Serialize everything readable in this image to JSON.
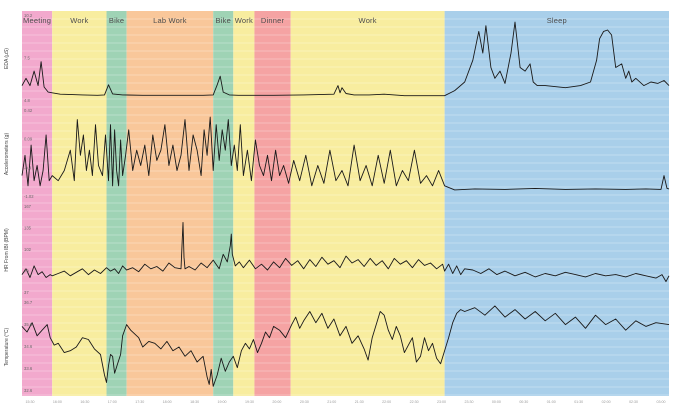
{
  "chart_data": {
    "type": "line",
    "grid": true,
    "periods": [
      {
        "label": "Meeting",
        "start": 0,
        "end": 30,
        "color": "#f2a9cd"
      },
      {
        "label": "Work",
        "start": 30,
        "end": 84,
        "color": "#f8ed9f"
      },
      {
        "label": "Bike",
        "start": 84,
        "end": 104,
        "color": "#9fd3b5"
      },
      {
        "label": "Lab Work",
        "start": 104,
        "end": 190,
        "color": "#f9c79a"
      },
      {
        "label": "Bike",
        "start": 190,
        "end": 210,
        "color": "#9fd3b5"
      },
      {
        "label": "Work",
        "start": 210,
        "end": 231,
        "color": "#f8ed9f"
      },
      {
        "label": "Dinner",
        "start": 231,
        "end": 267,
        "color": "#f5a3a3"
      },
      {
        "label": "Work",
        "start": 267,
        "end": 420,
        "color": "#f8ed9f"
      },
      {
        "label": "Sleep",
        "start": 420,
        "end": 643,
        "color": "#a9cfea"
      }
    ],
    "x_range": [
      0,
      643
    ],
    "panels": [
      {
        "ylabel": "EDA (μS)",
        "yticks": [
          "10.2",
          "7.5",
          "4.8"
        ],
        "ylim": [
          -0.5,
          11
        ],
        "x": [
          0,
          4,
          8,
          12,
          16,
          19,
          22,
          26,
          30,
          38,
          50,
          60,
          75,
          82,
          86,
          90,
          100,
          120,
          150,
          180,
          190,
          194,
          197,
          200,
          206,
          215,
          250,
          280,
          310,
          314,
          316,
          318,
          322,
          330,
          345,
          360,
          380,
          400,
          420,
          430,
          440,
          448,
          454,
          458,
          461,
          466,
          470,
          475,
          480,
          486,
          490,
          495,
          500,
          505,
          508,
          512,
          520,
          540,
          555,
          565,
          571,
          574,
          578,
          582,
          586,
          590,
          596,
          600,
          603,
          606,
          610,
          618,
          625,
          632,
          638,
          643
        ],
        "y": [
          1.5,
          2.5,
          1.5,
          3.5,
          1.5,
          4.8,
          1.3,
          0.6,
          0.5,
          0.3,
          0.25,
          0.2,
          0.15,
          0.2,
          1.6,
          0.35,
          0.2,
          0.15,
          0.15,
          0.15,
          0.2,
          1.6,
          2.8,
          0.6,
          0.2,
          0.15,
          0.15,
          0.2,
          0.3,
          1.5,
          0.5,
          1.2,
          0.4,
          0.2,
          0.2,
          0.3,
          0.1,
          0.1,
          0.1,
          0.8,
          2,
          5,
          9,
          6,
          9.8,
          4,
          2.5,
          3.5,
          1.8,
          6,
          10.3,
          4,
          3.5,
          4.5,
          2,
          1.5,
          1.5,
          1.2,
          1.5,
          2,
          5,
          8,
          9,
          9.2,
          8.5,
          4,
          4.5,
          2.5,
          3.5,
          2,
          2.5,
          1.5,
          2,
          1.8,
          2.2,
          1.5
        ]
      },
      {
        "ylabel": "Accelerometers (g)",
        "yticks": [
          "0.42",
          "0.09",
          "-0.4",
          "-1.02"
        ],
        "ylim": [
          -1.1,
          0.55
        ],
        "x": [
          0,
          3,
          6,
          9,
          12,
          15,
          18,
          21,
          24,
          27,
          30,
          36,
          42,
          48,
          52,
          55,
          58,
          61,
          64,
          67,
          70,
          73,
          76,
          80,
          83,
          86,
          88,
          90,
          92,
          94,
          96,
          98,
          100,
          103,
          106,
          110,
          114,
          118,
          122,
          126,
          130,
          134,
          138,
          142,
          146,
          150,
          154,
          158,
          162,
          166,
          170,
          174,
          178,
          181,
          184,
          187,
          190,
          193,
          196,
          199,
          202,
          205,
          208,
          211,
          214,
          217,
          220,
          224,
          228,
          232,
          236,
          240,
          244,
          248,
          252,
          256,
          260,
          265,
          270,
          276,
          282,
          288,
          294,
          300,
          306,
          312,
          318,
          324,
          330,
          336,
          342,
          348,
          354,
          360,
          366,
          372,
          378,
          384,
          390,
          396,
          402,
          408,
          414,
          420,
          430,
          450,
          480,
          510,
          540,
          570,
          600,
          620,
          635,
          638,
          641,
          643
        ],
        "y": [
          -0.7,
          -0.3,
          -0.9,
          -0.1,
          -0.8,
          -0.5,
          -0.9,
          -0.6,
          0.1,
          -0.8,
          -0.7,
          -0.8,
          -0.6,
          -0.2,
          -0.8,
          0.4,
          -0.3,
          0.1,
          -0.6,
          -0.2,
          -0.7,
          0.3,
          -0.5,
          -0.7,
          0.1,
          -0.8,
          0.3,
          -0.9,
          0.2,
          -0.6,
          -0.9,
          0,
          -0.7,
          -0.3,
          0.2,
          -0.6,
          -0.2,
          -0.5,
          -0.1,
          -0.7,
          0.1,
          -0.4,
          -0.2,
          0.3,
          -0.5,
          -0.1,
          -0.6,
          -0.3,
          0.4,
          -0.6,
          0.1,
          -0.2,
          -0.7,
          0.2,
          -0.3,
          0.45,
          -0.6,
          0.3,
          -0.4,
          0.2,
          -0.2,
          0.4,
          -0.5,
          -0.1,
          -0.6,
          0.3,
          -0.7,
          -0.2,
          -0.8,
          0,
          -0.5,
          -0.7,
          -0.3,
          -0.8,
          -0.2,
          -0.7,
          -0.5,
          -0.85,
          -0.4,
          -0.8,
          -0.3,
          -0.9,
          -0.5,
          -0.85,
          -0.2,
          -0.8,
          -0.6,
          -0.9,
          -0.1,
          -0.8,
          -0.5,
          -0.9,
          -0.3,
          -0.85,
          -0.2,
          -0.9,
          -0.6,
          -0.8,
          -0.2,
          -0.85,
          -0.7,
          -0.9,
          -0.6,
          -0.9,
          -0.98,
          -0.96,
          -0.97,
          -0.95,
          -0.97,
          -0.96,
          -0.97,
          -0.96,
          -0.97,
          -0.7,
          -0.95,
          -0.96
        ]
      },
      {
        "ylabel": "HR From IBI (BPM)",
        "yticks": [
          "167",
          "135",
          "102",
          "70",
          "37"
        ],
        "ylim": [
          30,
          175
        ],
        "x": [
          0,
          4,
          8,
          12,
          16,
          20,
          24,
          28,
          30,
          36,
          42,
          48,
          54,
          60,
          66,
          72,
          78,
          84,
          88,
          92,
          96,
          100,
          104,
          110,
          116,
          122,
          128,
          134,
          140,
          146,
          152,
          158,
          160,
          161,
          162,
          166,
          172,
          178,
          184,
          190,
          196,
          200,
          204,
          207,
          208,
          209,
          212,
          216,
          220,
          226,
          232,
          238,
          244,
          250,
          256,
          262,
          268,
          274,
          280,
          286,
          292,
          298,
          304,
          310,
          316,
          322,
          328,
          334,
          340,
          346,
          352,
          358,
          364,
          370,
          376,
          382,
          388,
          394,
          400,
          406,
          412,
          418,
          420,
          424,
          428,
          432,
          436,
          440,
          448,
          456,
          464,
          472,
          480,
          490,
          500,
          510,
          520,
          530,
          540,
          550,
          560,
          570,
          580,
          590,
          600,
          610,
          620,
          630,
          636,
          640,
          643
        ],
        "y": [
          60,
          70,
          55,
          75,
          60,
          65,
          55,
          60,
          58,
          62,
          66,
          58,
          64,
          70,
          60,
          68,
          62,
          72,
          66,
          70,
          62,
          75,
          68,
          72,
          65,
          78,
          70,
          74,
          66,
          80,
          72,
          70,
          150,
          90,
          70,
          74,
          68,
          80,
          72,
          85,
          70,
          95,
          82,
          110,
          130,
          95,
          75,
          82,
          72,
          85,
          70,
          78,
          68,
          82,
          72,
          88,
          76,
          84,
          70,
          86,
          74,
          90,
          78,
          84,
          72,
          92,
          80,
          86,
          74,
          88,
          76,
          84,
          70,
          88,
          78,
          84,
          72,
          86,
          76,
          80,
          70,
          78,
          66,
          78,
          62,
          75,
          60,
          70,
          68,
          62,
          70,
          60,
          66,
          58,
          64,
          56,
          62,
          58,
          64,
          60,
          56,
          62,
          58,
          60,
          56,
          62,
          58,
          54,
          60,
          48,
          58
        ]
      },
      {
        "ylabel": "Temperature (°C)",
        "yticks": [
          "36.7",
          "35.6",
          "34.6",
          "33.6",
          "32.6"
        ],
        "ylim": [
          32.4,
          37.0
        ],
        "x": [
          0,
          5,
          10,
          15,
          20,
          25,
          28,
          32,
          36,
          42,
          48,
          54,
          60,
          66,
          72,
          78,
          82,
          84,
          86,
          88,
          90,
          92,
          95,
          98,
          100,
          104,
          108,
          112,
          116,
          120,
          126,
          132,
          138,
          144,
          150,
          156,
          162,
          168,
          174,
          180,
          184,
          186,
          188,
          190,
          194,
          198,
          202,
          206,
          210,
          214,
          218,
          222,
          226,
          230,
          234,
          238,
          242,
          246,
          250,
          256,
          262,
          268,
          272,
          276,
          280,
          286,
          292,
          298,
          304,
          310,
          316,
          322,
          328,
          334,
          340,
          344,
          348,
          352,
          356,
          360,
          364,
          368,
          372,
          376,
          380,
          384,
          388,
          392,
          396,
          400,
          404,
          408,
          412,
          416,
          420,
          424,
          428,
          432,
          436,
          440,
          450,
          460,
          470,
          480,
          490,
          500,
          510,
          520,
          530,
          540,
          550,
          560,
          570,
          580,
          590,
          600,
          610,
          620,
          630,
          643
        ],
        "y": [
          35.8,
          35.5,
          36.0,
          35.3,
          35.6,
          35.9,
          35.2,
          34.8,
          34.9,
          34.4,
          34.5,
          34.7,
          35.2,
          35.1,
          34.6,
          34.3,
          33.2,
          32.8,
          33.7,
          34.3,
          34.2,
          33.3,
          33.8,
          34.3,
          35.3,
          35.9,
          35.6,
          35.4,
          35.2,
          34.7,
          35.0,
          34.9,
          34.6,
          35.0,
          34.5,
          34.7,
          34.2,
          34.5,
          33.9,
          34.2,
          33.1,
          32.7,
          33.5,
          32.6,
          33.2,
          34.1,
          33.4,
          33.9,
          34.2,
          33.6,
          34.5,
          34.9,
          34.6,
          35.1,
          34.4,
          34.9,
          35.5,
          35.2,
          35.8,
          35.6,
          35.2,
          35.9,
          36.3,
          35.7,
          36.1,
          36.6,
          36.0,
          36.5,
          35.7,
          36.2,
          35.3,
          35.8,
          34.9,
          35.3,
          34.6,
          34.0,
          35.2,
          35.9,
          36.6,
          36.4,
          35.6,
          35.1,
          35.8,
          35.3,
          34.4,
          34.8,
          35.2,
          33.9,
          34.2,
          35.2,
          34.5,
          34.9,
          34.1,
          33.8,
          34.5,
          35.2,
          36.0,
          36.5,
          36.7,
          36.6,
          36.8,
          36.4,
          36.9,
          36.3,
          36.7,
          36.2,
          36.6,
          36.1,
          36.5,
          35.9,
          36.3,
          35.7,
          36.4,
          35.9,
          36.2,
          35.6,
          36.1,
          35.8,
          36.0,
          35.9
        ]
      }
    ],
    "xtick_labels": [
      "15:30",
      "16:00",
      "16:30",
      "17:00",
      "17:30",
      "18:00",
      "18:30",
      "19:00",
      "19:30",
      "20:00",
      "20:30",
      "21:00",
      "21:30",
      "22:00",
      "22:30",
      "23:00",
      "23:30",
      "00:00",
      "00:30",
      "01:00",
      "01:30",
      "02:00",
      "02:30",
      "03:00"
    ]
  }
}
